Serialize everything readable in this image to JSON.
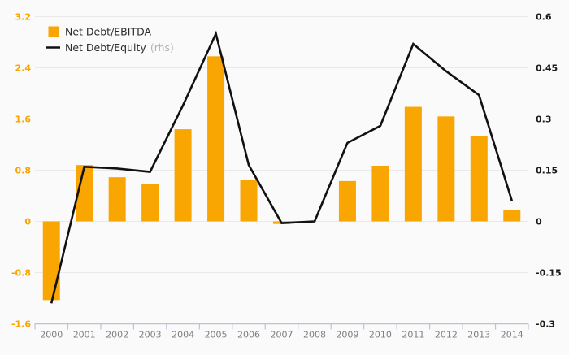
{
  "chart_data": {
    "type": "bar+line",
    "title": "",
    "categories": [
      "2000",
      "2001",
      "2002",
      "2003",
      "2004",
      "2005",
      "2006",
      "2007",
      "2008",
      "2009",
      "2010",
      "2011",
      "2012",
      "2013",
      "2014"
    ],
    "series": [
      {
        "name": "Net Debt/EBITDA",
        "type": "bar",
        "axis": "left",
        "color": "#F9A602",
        "values": [
          -1.23,
          0.88,
          0.69,
          0.59,
          1.44,
          2.58,
          0.65,
          -0.04,
          0,
          0.63,
          0.87,
          1.79,
          1.64,
          1.33,
          0.18
        ]
      },
      {
        "name": "Net Debt/Equity",
        "suffix": "(rhs)",
        "type": "line",
        "axis": "right",
        "color": "#111111",
        "values": [
          -0.24,
          0.16,
          0.155,
          0.145,
          0.34,
          0.55,
          0.165,
          -0.005,
          0,
          0.23,
          0.28,
          0.52,
          0.44,
          0.37,
          0.06
        ]
      }
    ],
    "left_axis": {
      "tick_labels": [
        "3.2",
        "2.4",
        "1.6",
        "0.8",
        "0",
        "-0.8",
        "-1.6"
      ],
      "range": [
        -1.6,
        3.2
      ],
      "label_color": "#F9A602"
    },
    "right_axis": {
      "tick_labels": [
        "0.6",
        "0.45",
        "0.3",
        "0.15",
        "0",
        "-0.15",
        "-0.3"
      ],
      "range": [
        -0.3,
        0.6
      ],
      "label_color": "#1a1a1a"
    },
    "x_axis": {
      "labels": [
        "2000",
        "2001",
        "2002",
        "2003",
        "2004",
        "2005",
        "2006",
        "2007",
        "2008",
        "2009",
        "2010",
        "2011",
        "2012",
        "2013",
        "2014"
      ],
      "label_color": "#808080"
    },
    "grid": true,
    "legend_position": "top-left"
  },
  "legend": {
    "items": [
      {
        "label": "Net Debt/EBITDA",
        "swatch": "square",
        "color": "#F9A602"
      },
      {
        "label": "Net Debt/Equity",
        "suffix": "(rhs)",
        "swatch": "line",
        "color": "#111111"
      }
    ]
  },
  "colors": {
    "background": "#fafafa",
    "gridline": "#e9e9e9",
    "axis_line": "#b9c4da",
    "bar": "#F9A602",
    "line": "#111111",
    "year_label": "#808080",
    "rhs_hint": "#b3b3b3",
    "legend_text": "#2b2b2b"
  }
}
